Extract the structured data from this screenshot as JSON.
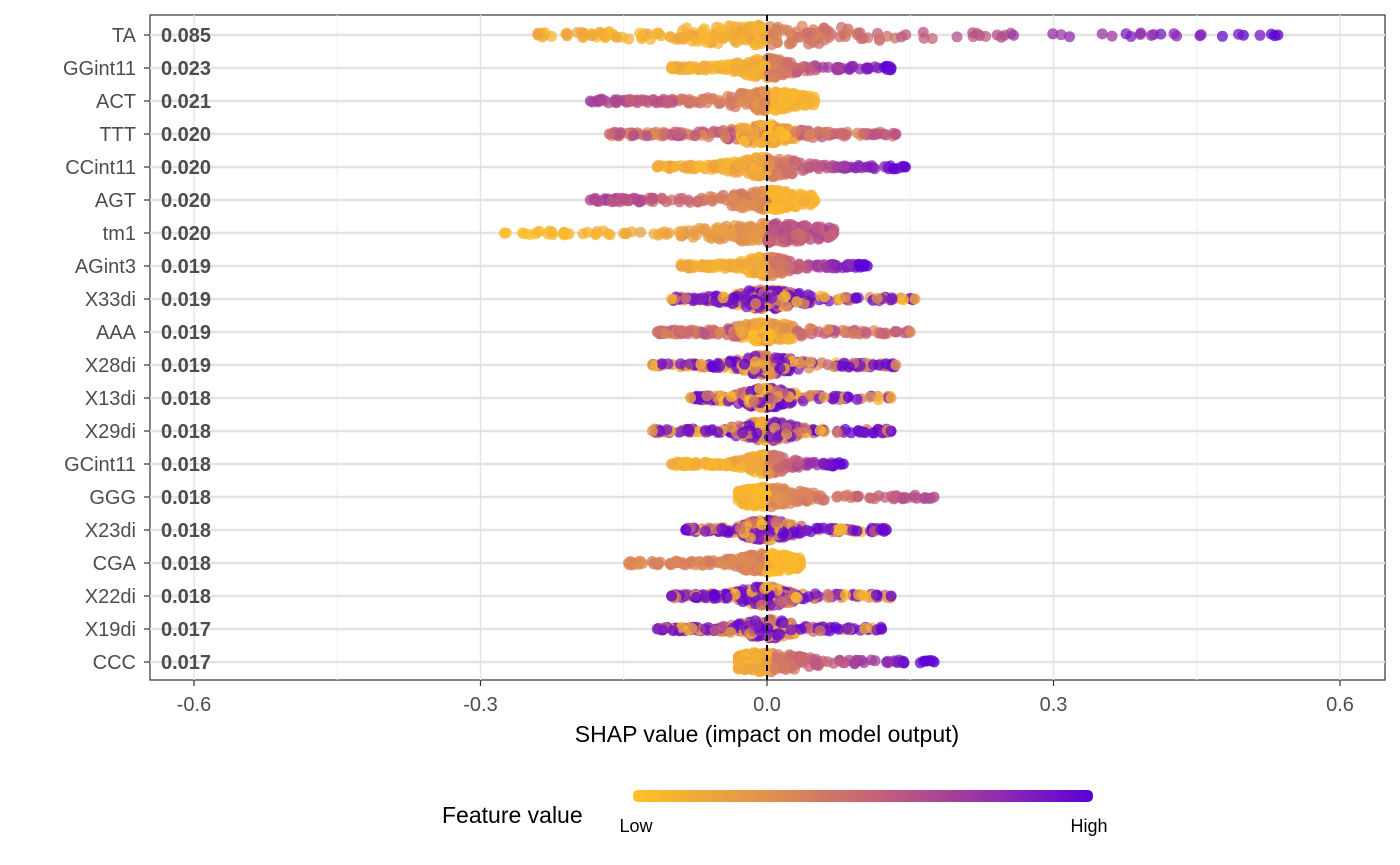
{
  "chart_data": {
    "type": "scatter",
    "title": "",
    "xlabel": "SHAP value (impact on model output)",
    "ylabel": "",
    "xlim": [
      -0.66,
      0.645
    ],
    "x_ticks": [
      -0.6,
      -0.3,
      0.0,
      0.3,
      0.6
    ],
    "x_tick_labels": [
      "-0.6",
      "-0.3",
      "0.0",
      "0.3",
      "0.6"
    ],
    "grid": true,
    "zero_line": true,
    "features": [
      {
        "name": "TA",
        "mean_abs_shap": "0.085",
        "min": -0.24,
        "max": 0.535,
        "pattern": "pos_high"
      },
      {
        "name": "GGint11",
        "mean_abs_shap": "0.023",
        "min": -0.1,
        "max": 0.13,
        "pattern": "pos_high"
      },
      {
        "name": "ACT",
        "mean_abs_shap": "0.021",
        "min": -0.185,
        "max": 0.05,
        "pattern": "neg_high"
      },
      {
        "name": "TTT",
        "mean_abs_shap": "0.020",
        "min": -0.165,
        "max": 0.135,
        "pattern": "mixed_mid"
      },
      {
        "name": "CCint11",
        "mean_abs_shap": "0.020",
        "min": -0.115,
        "max": 0.145,
        "pattern": "pos_high"
      },
      {
        "name": "AGT",
        "mean_abs_shap": "0.020",
        "min": -0.185,
        "max": 0.05,
        "pattern": "neg_high"
      },
      {
        "name": "tm1",
        "mean_abs_shap": "0.020",
        "min": -0.275,
        "max": 0.07,
        "pattern": "neg_low"
      },
      {
        "name": "AGint3",
        "mean_abs_shap": "0.019",
        "min": -0.09,
        "max": 0.105,
        "pattern": "pos_high"
      },
      {
        "name": "X33di",
        "mean_abs_shap": "0.019",
        "min": -0.1,
        "max": 0.155,
        "pattern": "scatter_mix"
      },
      {
        "name": "AAA",
        "mean_abs_shap": "0.019",
        "min": -0.115,
        "max": 0.15,
        "pattern": "mixed_mid"
      },
      {
        "name": "X28di",
        "mean_abs_shap": "0.019",
        "min": -0.12,
        "max": 0.135,
        "pattern": "scatter_mix"
      },
      {
        "name": "X13di",
        "mean_abs_shap": "0.018",
        "min": -0.08,
        "max": 0.13,
        "pattern": "scatter_mix"
      },
      {
        "name": "X29di",
        "mean_abs_shap": "0.018",
        "min": -0.12,
        "max": 0.13,
        "pattern": "scatter_mix"
      },
      {
        "name": "GCint11",
        "mean_abs_shap": "0.018",
        "min": -0.1,
        "max": 0.08,
        "pattern": "pos_high"
      },
      {
        "name": "GGG",
        "mean_abs_shap": "0.018",
        "min": -0.03,
        "max": 0.175,
        "pattern": "pos_high_mid"
      },
      {
        "name": "X23di",
        "mean_abs_shap": "0.018",
        "min": -0.085,
        "max": 0.125,
        "pattern": "scatter_mix"
      },
      {
        "name": "CGA",
        "mean_abs_shap": "0.018",
        "min": -0.145,
        "max": 0.035,
        "pattern": "neg_mid"
      },
      {
        "name": "X22di",
        "mean_abs_shap": "0.018",
        "min": -0.1,
        "max": 0.13,
        "pattern": "scatter_mix"
      },
      {
        "name": "X19di",
        "mean_abs_shap": "0.017",
        "min": -0.115,
        "max": 0.12,
        "pattern": "scatter_mix"
      },
      {
        "name": "CCC",
        "mean_abs_shap": "0.017",
        "min": -0.03,
        "max": 0.175,
        "pattern": "pos_high"
      }
    ],
    "legend": {
      "title": "Feature value",
      "low_label": "Low",
      "high_label": "High",
      "position": "bottom",
      "low_color": "#FFC125",
      "mid_color": "#C35D7B",
      "high_color": "#5B00D6"
    }
  }
}
